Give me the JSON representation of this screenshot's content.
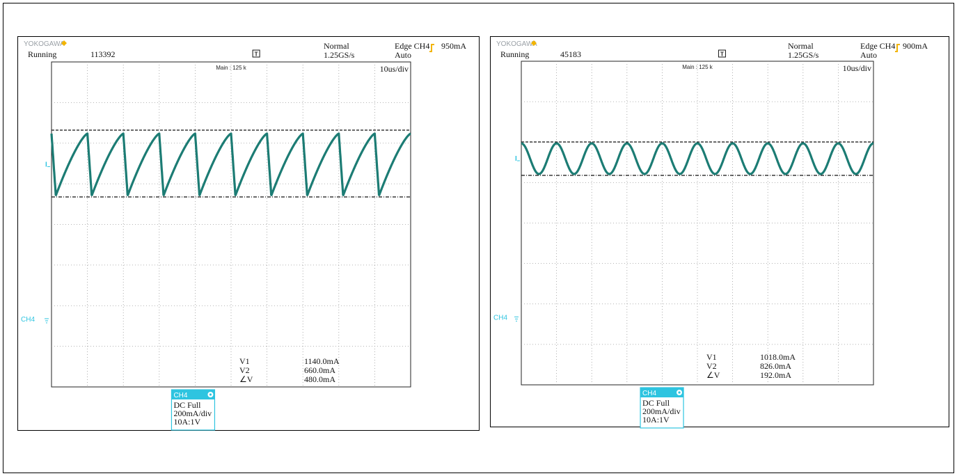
{
  "chart_data": [
    {
      "type": "line",
      "waveform": "sawtooth",
      "brand": "YOKOGAWA",
      "status": "Running",
      "acq_count": "113392",
      "trigger_mode": "Normal",
      "sample_rate": "1.25GS/s",
      "trigger": "Edge CH4",
      "trigger_level": "950mA",
      "trigger_auto": "Auto",
      "main_label": "Main : 125 k",
      "timebase": "10us/div",
      "channel_marker": "CH4",
      "measurements": [
        {
          "label": "V1",
          "value": "1140.0mA"
        },
        {
          "label": "V2",
          "value": "660.0mA"
        },
        {
          "label": "∠V",
          "value": "480.0mA"
        }
      ],
      "channel_box": {
        "header": "CH4",
        "lines": [
          "DC Full",
          "200mA/div",
          "10A:1V"
        ]
      },
      "cursor_high_mA": 1140,
      "cursor_low_mA": 660,
      "peak_mA": 1115,
      "valley_mA": 670,
      "cycles": 10,
      "phase": 0.0,
      "colors": {
        "trace": "#1c7c74",
        "channel": "#2ec4e0",
        "trigger": "#f2b400"
      }
    },
    {
      "type": "line",
      "waveform": "triangle",
      "brand": "YOKOGAWA",
      "status": "Running",
      "acq_count": "45183",
      "trigger_mode": "Normal",
      "sample_rate": "1.25GS/s",
      "trigger": "Edge CH4",
      "trigger_level": "900mA",
      "trigger_auto": "Auto",
      "main_label": "Main : 125 k",
      "timebase": "10us/div",
      "channel_marker": "CH4",
      "measurements": [
        {
          "label": "V1",
          "value": "1018.0mA"
        },
        {
          "label": "V2",
          "value": "826.0mA"
        },
        {
          "label": "∠V",
          "value": "192.0mA"
        }
      ],
      "channel_box": {
        "header": "CH4",
        "lines": [
          "DC Full",
          "200mA/div",
          "10A:1V"
        ]
      },
      "cursor_high_mA": 1018,
      "cursor_low_mA": 826,
      "peak_mA": 1010,
      "valley_mA": 834,
      "cycles": 10,
      "phase": 0.0,
      "colors": {
        "trace": "#1c7c74",
        "channel": "#2ec4e0",
        "trigger": "#f2b400"
      }
    }
  ]
}
